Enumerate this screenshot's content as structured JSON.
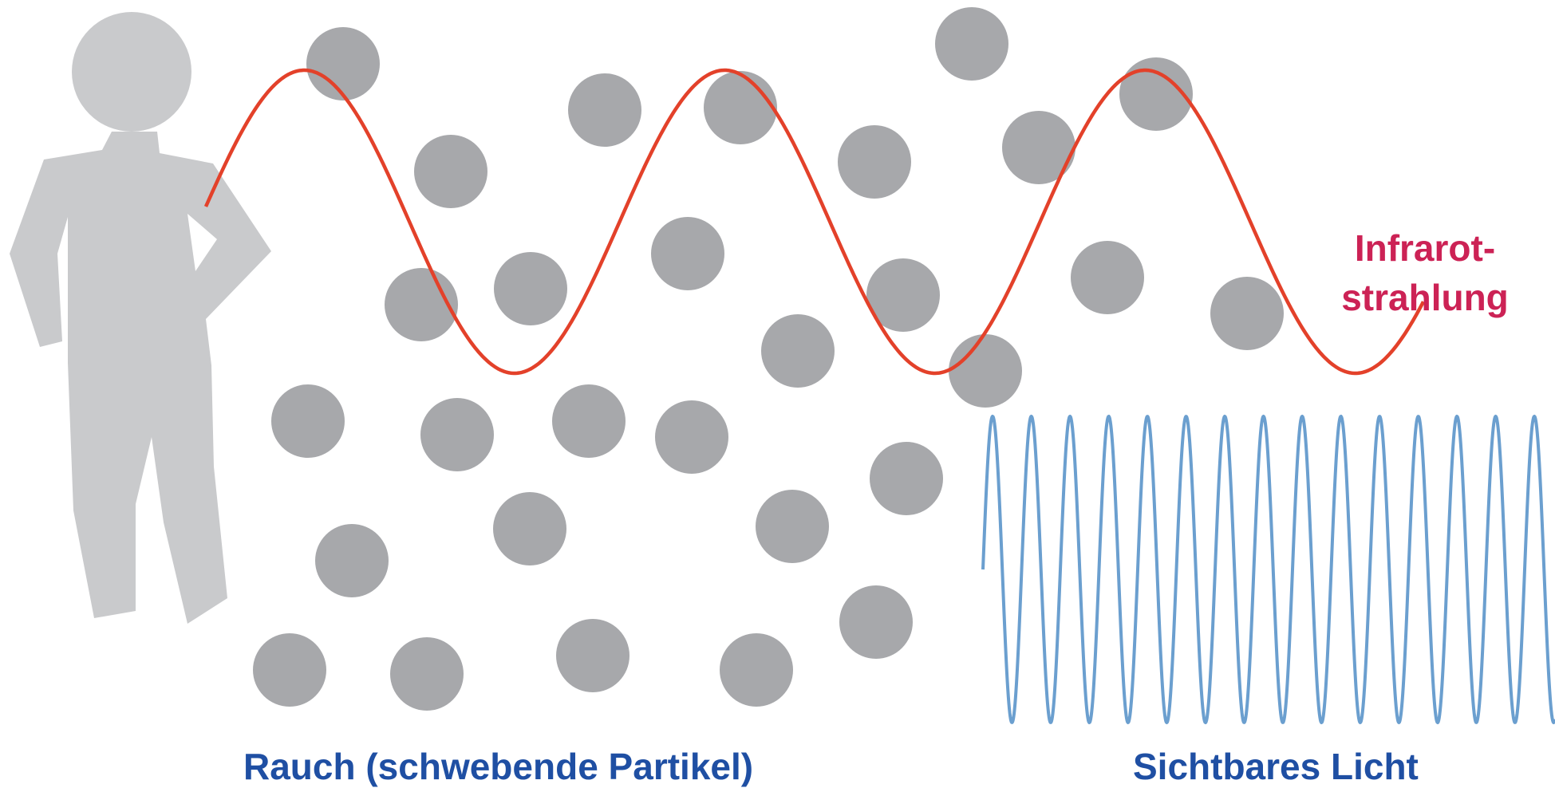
{
  "labels": {
    "infrared_line1": "Infrarot-",
    "infrared_line2": "strahlung",
    "smoke": "Rauch (schwebende Partikel)",
    "visible_light": "Sichtbares Licht"
  },
  "colors": {
    "infrared_wave": "#e3412a",
    "infrared_text": "#cc2255",
    "visible_wave": "#6b9fcf",
    "caption_text": "#1f4fa3",
    "particle": "#a7a8ab",
    "person": "#c9cacc"
  },
  "icons": {
    "person": "person-silhouette-icon"
  }
}
